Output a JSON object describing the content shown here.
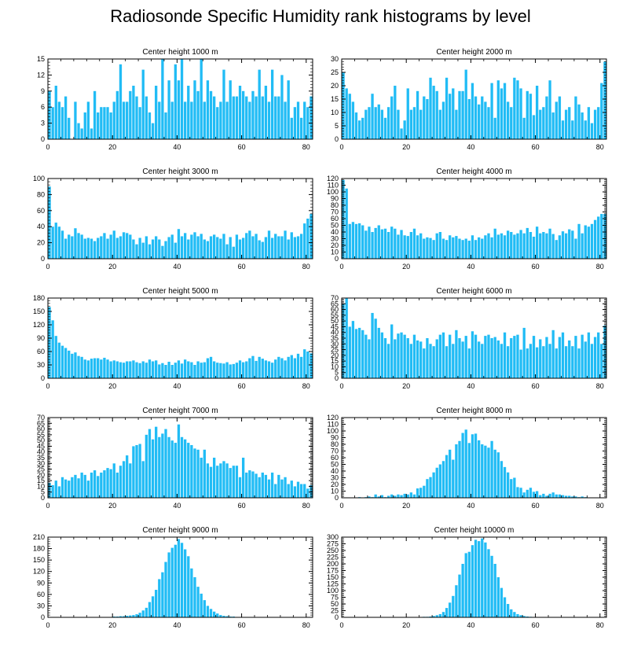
{
  "title": "Radiosonde Specific Humidity rank histograms by level",
  "bar_color": "#21bcf5",
  "chart_data": [
    {
      "type": "bar",
      "title": "Center height 1000 m",
      "xlabel": "",
      "ylabel": "",
      "xlim": [
        0,
        82
      ],
      "ylim": [
        0,
        15
      ],
      "xticks": [
        0,
        20,
        40,
        60,
        80
      ],
      "yticks": [
        0,
        3,
        6,
        9,
        12,
        15
      ],
      "values": [
        9,
        6,
        10,
        7,
        6,
        8,
        4,
        0,
        7,
        3,
        2,
        5,
        7,
        2,
        9,
        5,
        6,
        6,
        6,
        5,
        7,
        9,
        14,
        7,
        7,
        9,
        10,
        8,
        6,
        13,
        8,
        5,
        3,
        10,
        7,
        15,
        5,
        11,
        7,
        14,
        11,
        15,
        7,
        10,
        7,
        11,
        9,
        15,
        7,
        11,
        9,
        8,
        6,
        7,
        13,
        7,
        11,
        8,
        8,
        10,
        9,
        8,
        7,
        9,
        8,
        13,
        8,
        10,
        7,
        13,
        8,
        8,
        12,
        7,
        11,
        4,
        6,
        7,
        4,
        7,
        6,
        8
      ]
    },
    {
      "type": "bar",
      "title": "Center height 2000 m",
      "xlabel": "",
      "ylabel": "",
      "xlim": [
        0,
        82
      ],
      "ylim": [
        0,
        30
      ],
      "xticks": [
        0,
        20,
        40,
        60,
        80
      ],
      "yticks": [
        0,
        5,
        10,
        15,
        20,
        25,
        30
      ],
      "values": [
        25,
        19,
        17,
        14,
        10,
        7,
        8,
        11,
        12,
        17,
        12,
        13,
        11,
        8,
        12,
        16,
        20,
        11,
        4,
        7,
        19,
        11,
        12,
        18,
        11,
        16,
        15,
        23,
        20,
        18,
        11,
        14,
        23,
        17,
        19,
        11,
        18,
        18,
        26,
        15,
        21,
        16,
        13,
        16,
        14,
        12,
        21,
        8,
        22,
        19,
        21,
        14,
        12,
        23,
        22,
        19,
        8,
        18,
        17,
        9,
        20,
        11,
        12,
        16,
        22,
        10,
        14,
        16,
        7,
        11,
        12,
        7,
        16,
        13,
        10,
        7,
        12,
        6,
        11,
        12,
        21,
        29
      ]
    },
    {
      "type": "bar",
      "title": "Center height 3000 m",
      "xlabel": "",
      "ylabel": "",
      "xlim": [
        0,
        82
      ],
      "ylim": [
        0,
        100
      ],
      "xticks": [
        0,
        20,
        40,
        60,
        80
      ],
      "yticks": [
        0,
        20,
        40,
        60,
        80,
        100
      ],
      "values": [
        90,
        40,
        45,
        40,
        35,
        25,
        30,
        28,
        38,
        32,
        30,
        25,
        26,
        25,
        22,
        26,
        28,
        32,
        25,
        30,
        35,
        26,
        28,
        33,
        32,
        30,
        24,
        18,
        26,
        20,
        28,
        18,
        24,
        28,
        24,
        16,
        22,
        27,
        30,
        20,
        37,
        28,
        32,
        24,
        30,
        33,
        28,
        31,
        24,
        22,
        28,
        30,
        27,
        25,
        31,
        18,
        27,
        15,
        30,
        24,
        26,
        32,
        35,
        28,
        31,
        23,
        21,
        27,
        35,
        26,
        31,
        28,
        28,
        35,
        24,
        33,
        27,
        28,
        31,
        44,
        50,
        56
      ]
    },
    {
      "type": "bar",
      "title": "Center height 4000 m",
      "xlabel": "",
      "ylabel": "",
      "xlim": [
        0,
        82
      ],
      "ylim": [
        0,
        120
      ],
      "xticks": [
        0,
        20,
        40,
        60,
        80
      ],
      "yticks": [
        0,
        10,
        20,
        30,
        40,
        50,
        60,
        70,
        80,
        90,
        100,
        110,
        120
      ],
      "values": [
        118,
        105,
        52,
        55,
        52,
        53,
        50,
        42,
        48,
        40,
        46,
        50,
        44,
        45,
        40,
        48,
        45,
        36,
        43,
        35,
        34,
        40,
        45,
        35,
        38,
        30,
        32,
        31,
        28,
        38,
        40,
        30,
        28,
        35,
        32,
        34,
        30,
        28,
        30,
        27,
        35,
        28,
        32,
        30,
        35,
        38,
        32,
        45,
        36,
        38,
        35,
        42,
        40,
        36,
        38,
        43,
        38,
        46,
        40,
        33,
        48,
        38,
        40,
        38,
        45,
        37,
        28,
        35,
        41,
        38,
        44,
        42,
        30,
        52,
        38,
        50,
        48,
        52,
        58,
        63,
        67,
        67
      ]
    },
    {
      "type": "bar",
      "title": "Center height 5000 m",
      "xlabel": "",
      "ylabel": "",
      "xlim": [
        0,
        82
      ],
      "ylim": [
        0,
        180
      ],
      "xticks": [
        0,
        20,
        40,
        60,
        80
      ],
      "yticks": [
        0,
        30,
        60,
        90,
        120,
        150,
        180
      ],
      "values": [
        160,
        130,
        95,
        80,
        73,
        68,
        62,
        55,
        58,
        50,
        48,
        42,
        40,
        44,
        45,
        45,
        42,
        46,
        42,
        38,
        40,
        38,
        36,
        35,
        38,
        38,
        40,
        36,
        34,
        38,
        35,
        42,
        38,
        40,
        31,
        34,
        30,
        37,
        30,
        35,
        40,
        33,
        42,
        38,
        36,
        30,
        38,
        35,
        36,
        45,
        48,
        38,
        35,
        34,
        33,
        36,
        31,
        32,
        35,
        40,
        36,
        38,
        45,
        50,
        39,
        48,
        44,
        40,
        38,
        35,
        42,
        48,
        45,
        40,
        48,
        52,
        45,
        55,
        48,
        65,
        60,
        56
      ]
    },
    {
      "type": "bar",
      "title": "Center height 6000 m",
      "xlabel": "",
      "ylabel": "",
      "xlim": [
        0,
        82
      ],
      "ylim": [
        0,
        70
      ],
      "xticks": [
        0,
        20,
        40,
        60,
        80
      ],
      "yticks": [
        0,
        5,
        10,
        15,
        20,
        25,
        30,
        35,
        40,
        45,
        50,
        55,
        60,
        65,
        70
      ],
      "values": [
        65,
        70,
        45,
        50,
        43,
        44,
        42,
        38,
        34,
        57,
        52,
        44,
        40,
        35,
        30,
        47,
        34,
        39,
        40,
        38,
        35,
        30,
        38,
        33,
        32,
        26,
        35,
        30,
        28,
        34,
        38,
        40,
        28,
        38,
        30,
        42,
        35,
        32,
        37,
        26,
        41,
        38,
        32,
        30,
        37,
        38,
        35,
        36,
        33,
        30,
        40,
        28,
        35,
        37,
        38,
        25,
        44,
        26,
        30,
        37,
        27,
        34,
        28,
        36,
        30,
        42,
        26,
        36,
        40,
        28,
        33,
        28,
        37,
        26,
        38,
        32,
        40,
        30,
        36,
        40,
        30,
        46
      ]
    },
    {
      "type": "bar",
      "title": "Center height 7000 m",
      "xlabel": "",
      "ylabel": "",
      "xlim": [
        0,
        82
      ],
      "ylim": [
        0,
        70
      ],
      "xticks": [
        0,
        20,
        40,
        60,
        80
      ],
      "yticks": [
        0,
        5,
        10,
        15,
        20,
        25,
        30,
        35,
        40,
        45,
        50,
        55,
        60,
        65,
        70
      ],
      "values": [
        13,
        11,
        15,
        10,
        18,
        16,
        15,
        18,
        20,
        17,
        22,
        20,
        15,
        22,
        24,
        19,
        22,
        24,
        26,
        25,
        30,
        22,
        28,
        32,
        37,
        30,
        45,
        46,
        47,
        32,
        55,
        60,
        51,
        62,
        53,
        56,
        60,
        53,
        50,
        48,
        64,
        53,
        51,
        48,
        46,
        43,
        42,
        35,
        42,
        30,
        27,
        35,
        28,
        30,
        32,
        30,
        26,
        28,
        28,
        18,
        35,
        22,
        24,
        23,
        21,
        18,
        22,
        20,
        16,
        22,
        12,
        20,
        16,
        18,
        12,
        15,
        10,
        14,
        12,
        12,
        8,
        11
      ]
    },
    {
      "type": "bar",
      "title": "Center height 8000 m",
      "xlabel": "",
      "ylabel": "",
      "xlim": [
        0,
        82
      ],
      "ylim": [
        0,
        120
      ],
      "xticks": [
        0,
        20,
        40,
        60,
        80
      ],
      "yticks": [
        0,
        10,
        20,
        30,
        40,
        50,
        60,
        70,
        80,
        90,
        100,
        110,
        120
      ],
      "values": [
        0,
        0,
        0,
        0,
        0,
        1,
        0,
        1,
        2,
        1,
        5,
        2,
        4,
        1,
        3,
        5,
        3,
        5,
        4,
        6,
        5,
        8,
        5,
        14,
        15,
        18,
        28,
        31,
        38,
        45,
        50,
        55,
        64,
        72,
        57,
        80,
        85,
        97,
        102,
        82,
        95,
        96,
        86,
        80,
        78,
        75,
        85,
        72,
        68,
        55,
        46,
        38,
        28,
        30,
        16,
        15,
        8,
        12,
        15,
        9,
        10,
        4,
        6,
        3,
        6,
        8,
        5,
        5,
        4,
        3,
        3,
        2,
        2,
        1,
        2,
        1,
        0,
        0,
        0,
        0,
        0,
        0
      ]
    },
    {
      "type": "bar",
      "title": "Center height 9000 m",
      "xlabel": "",
      "ylabel": "",
      "xlim": [
        0,
        82
      ],
      "ylim": [
        0,
        210
      ],
      "xticks": [
        0,
        20,
        40,
        60,
        80
      ],
      "yticks": [
        0,
        30,
        60,
        90,
        120,
        150,
        180,
        210
      ],
      "values": [
        0,
        0,
        0,
        0,
        0,
        0,
        0,
        0,
        0,
        0,
        0,
        0,
        0,
        0,
        0,
        0,
        0,
        0,
        1,
        1,
        2,
        2,
        3,
        3,
        4,
        5,
        6,
        8,
        12,
        18,
        25,
        40,
        55,
        72,
        100,
        118,
        145,
        170,
        182,
        190,
        205,
        195,
        178,
        160,
        128,
        105,
        80,
        62,
        45,
        30,
        22,
        15,
        10,
        6,
        4,
        3,
        2,
        2,
        1,
        1,
        1,
        0,
        0,
        0,
        0,
        0,
        0,
        0,
        0,
        0,
        0,
        0,
        0,
        0,
        0,
        0,
        0,
        0,
        0,
        0,
        0,
        0
      ]
    },
    {
      "type": "bar",
      "title": "Center height 10000 m",
      "xlabel": "",
      "ylabel": "",
      "xlim": [
        0,
        82
      ],
      "ylim": [
        0,
        300
      ],
      "xticks": [
        0,
        20,
        40,
        60,
        80
      ],
      "yticks": [
        0,
        25,
        50,
        75,
        100,
        125,
        150,
        175,
        200,
        225,
        250,
        275,
        300
      ],
      "values": [
        0,
        0,
        0,
        0,
        0,
        0,
        0,
        0,
        0,
        0,
        0,
        0,
        0,
        0,
        0,
        0,
        0,
        0,
        0,
        0,
        0,
        0,
        0,
        1,
        1,
        2,
        2,
        3,
        5,
        8,
        12,
        20,
        35,
        55,
        80,
        120,
        160,
        200,
        240,
        245,
        270,
        290,
        285,
        295,
        280,
        255,
        230,
        200,
        150,
        110,
        75,
        50,
        30,
        20,
        12,
        8,
        5,
        3,
        2,
        1,
        1,
        0,
        0,
        0,
        0,
        0,
        0,
        0,
        0,
        0,
        0,
        0,
        0,
        0,
        0,
        0,
        0,
        0,
        0,
        0,
        0,
        0
      ]
    }
  ]
}
